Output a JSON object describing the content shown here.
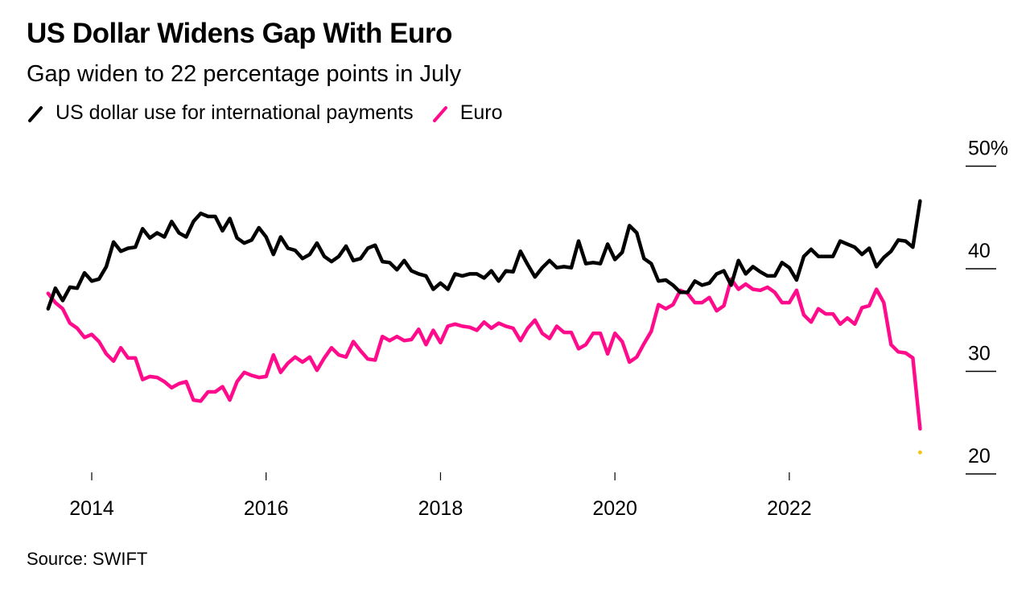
{
  "chart_data": {
    "type": "line",
    "title": "US Dollar Widens Gap With Euro",
    "subtitle": "Gap widen to 22 percentage points in July",
    "source": "Source: SWIFT",
    "xlabel": "",
    "ylabel": "",
    "x_start": "2013-07",
    "x_frequency": "monthly",
    "x_ticks": [
      "2014",
      "2016",
      "2018",
      "2020",
      "2022"
    ],
    "y_ticks": [
      "20",
      "30",
      "40",
      "50%"
    ],
    "y_tick_values": [
      20,
      30,
      40,
      50
    ],
    "ylim": [
      18,
      52
    ],
    "y_axis_side": "right",
    "grid": false,
    "legend_placement": "top-left",
    "series": [
      {
        "name": "US dollar use for international payments",
        "color": "#000000",
        "values": [
          36.1,
          38.1,
          36.9,
          38.2,
          38.1,
          39.6,
          38.8,
          39.0,
          40.2,
          42.6,
          41.7,
          42.0,
          42.1,
          43.9,
          43.0,
          43.5,
          43.1,
          44.6,
          43.5,
          43.1,
          44.6,
          45.4,
          45.1,
          45.1,
          43.7,
          44.9,
          43.0,
          42.5,
          42.8,
          44.0,
          43.1,
          41.4,
          43.1,
          42.0,
          41.8,
          41.0,
          41.4,
          42.5,
          41.2,
          40.7,
          41.2,
          42.2,
          40.8,
          41.0,
          42.0,
          42.3,
          40.7,
          40.6,
          39.9,
          40.8,
          39.8,
          39.5,
          39.3,
          38.0,
          38.6,
          38.0,
          39.5,
          39.3,
          39.5,
          39.5,
          39.1,
          39.8,
          38.8,
          39.8,
          39.7,
          41.7,
          40.4,
          39.2,
          40.1,
          40.8,
          40.1,
          40.2,
          40.1,
          42.7,
          40.5,
          40.6,
          40.5,
          42.4,
          40.9,
          41.6,
          44.2,
          43.5,
          41.0,
          40.5,
          38.8,
          38.9,
          38.4,
          37.7,
          37.7,
          38.8,
          38.4,
          38.6,
          39.5,
          39.8,
          38.4,
          40.8,
          39.5,
          40.2,
          39.7,
          39.3,
          39.3,
          40.6,
          40.1,
          38.9,
          41.2,
          41.9,
          41.2,
          41.2,
          41.2,
          42.7,
          42.4,
          42.1,
          41.4,
          42.0,
          40.2,
          41.1,
          41.7,
          42.8,
          42.7,
          42.1,
          46.6
        ]
      },
      {
        "name": "Euro",
        "color": "#ff0b8c",
        "values": [
          37.6,
          36.7,
          36.1,
          34.7,
          34.2,
          33.3,
          33.6,
          32.9,
          31.7,
          31.0,
          32.3,
          31.3,
          31.3,
          29.2,
          29.5,
          29.4,
          29.0,
          28.4,
          28.8,
          29.0,
          27.2,
          27.1,
          28.0,
          28.0,
          28.5,
          27.2,
          29.0,
          29.9,
          29.6,
          29.4,
          29.5,
          31.6,
          29.9,
          30.8,
          31.4,
          30.9,
          31.4,
          30.1,
          31.3,
          32.3,
          31.6,
          31.4,
          32.9,
          32.0,
          31.2,
          31.1,
          33.4,
          33.0,
          33.4,
          33.0,
          33.1,
          34.1,
          32.6,
          34.0,
          32.8,
          34.4,
          34.6,
          34.4,
          34.3,
          34.0,
          34.8,
          34.2,
          34.7,
          34.4,
          34.2,
          33.0,
          34.2,
          35.0,
          33.7,
          33.2,
          34.4,
          33.8,
          33.8,
          32.2,
          32.6,
          33.7,
          33.7,
          31.7,
          33.7,
          32.9,
          30.9,
          31.4,
          32.7,
          33.9,
          36.5,
          36.1,
          36.5,
          37.9,
          37.6,
          36.7,
          36.7,
          37.2,
          35.9,
          36.4,
          39.0,
          38.0,
          38.5,
          38.0,
          37.9,
          38.2,
          37.7,
          36.7,
          36.7,
          37.9,
          35.5,
          34.8,
          36.1,
          35.6,
          35.6,
          34.6,
          35.2,
          34.6,
          36.2,
          36.4,
          38.0,
          36.7,
          32.6,
          31.9,
          31.8,
          31.3,
          24.4
        ]
      }
    ],
    "annotations": [
      {
        "type": "marker",
        "label": "gap-marker",
        "value": 22.1,
        "color": "#f5c518",
        "at": "last"
      }
    ]
  },
  "legend": {
    "items": [
      {
        "label": "US dollar use for international payments",
        "color": "#000000"
      },
      {
        "label": "Euro",
        "color": "#ff0b8c"
      }
    ]
  }
}
